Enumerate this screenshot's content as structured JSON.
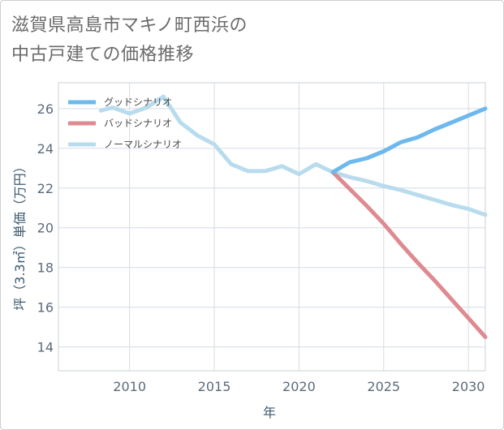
{
  "title_line1": "滋賀県高島市マキノ町西浜の",
  "title_line2": "中古戸建ての価格推移",
  "chart_data": {
    "type": "line",
    "title": "滋賀県高島市マキノ町西浜の中古戸建ての価格推移",
    "xlabel": "年",
    "ylabel": "坪（3.3㎡）単価（万円）",
    "xlim": [
      2005.8,
      2031
    ],
    "ylim": [
      12.8,
      27.3
    ],
    "xticks": [
      2010,
      2015,
      2020,
      2025,
      2030
    ],
    "yticks": [
      14,
      16,
      18,
      20,
      22,
      24,
      26
    ],
    "grid": true,
    "legend_position": "top-left",
    "series": [
      {
        "name": "グッドシナリオ",
        "color": "#6db8ec",
        "x": [
          2022,
          2023,
          2024,
          2025,
          2026,
          2027,
          2028,
          2029,
          2030,
          2031
        ],
        "y": [
          22.8,
          23.3,
          23.5,
          23.85,
          24.3,
          24.55,
          24.95,
          25.3,
          25.65,
          26.0
        ]
      },
      {
        "name": "バッドシナリオ",
        "color": "#de8a91",
        "x": [
          2022,
          2023,
          2024,
          2025,
          2026,
          2027,
          2028,
          2029,
          2030,
          2031
        ],
        "y": [
          22.8,
          21.95,
          21.1,
          20.2,
          19.2,
          18.25,
          17.35,
          16.4,
          15.45,
          14.5
        ]
      },
      {
        "name": "ノーマルシナリオ",
        "color": "#b8dced",
        "x": [
          2008.3,
          2009,
          2010,
          2011,
          2012,
          2013,
          2014,
          2015,
          2016,
          2017,
          2018,
          2019,
          2020,
          2021,
          2022,
          2023,
          2024,
          2025,
          2026,
          2027,
          2028,
          2029,
          2030,
          2031
        ],
        "y": [
          25.9,
          26.05,
          25.75,
          26.05,
          26.6,
          25.3,
          24.65,
          24.2,
          23.2,
          22.85,
          22.85,
          23.1,
          22.7,
          23.2,
          22.8,
          22.55,
          22.35,
          22.1,
          21.9,
          21.65,
          21.4,
          21.15,
          20.95,
          20.65
        ]
      }
    ]
  }
}
